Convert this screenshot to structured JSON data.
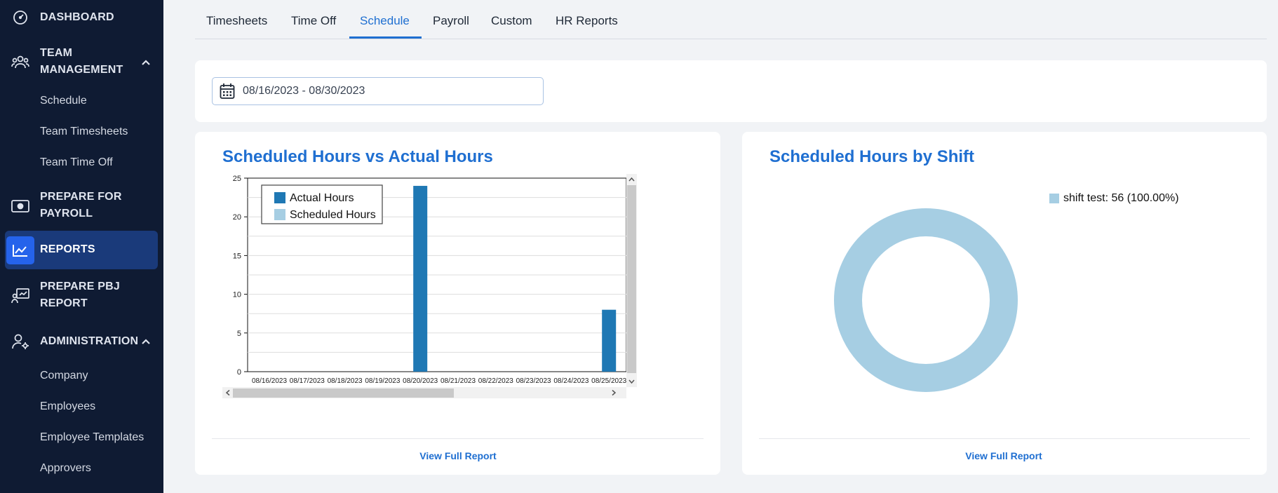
{
  "sidebar": {
    "dashboard": "DASHBOARD",
    "team_management_line1": "TEAM",
    "team_management_line2": "MANAGEMENT",
    "team_items": [
      "Schedule",
      "Team Timesheets",
      "Team Time Off"
    ],
    "prepare_payroll_line1": "PREPARE FOR",
    "prepare_payroll_line2": "PAYROLL",
    "reports": "REPORTS",
    "prepare_pbj_line1": "PREPARE PBJ",
    "prepare_pbj_line2": "REPORT",
    "administration": "ADMINISTRATION",
    "admin_items": [
      "Company",
      "Employees",
      "Employee Templates",
      "Approvers"
    ]
  },
  "tabs": [
    "Timesheets",
    "Time Off",
    "Schedule",
    "Payroll",
    "Custom",
    "HR Reports"
  ],
  "active_tab": "Schedule",
  "date_range": "08/16/2023 - 08/30/2023",
  "bar_card": {
    "title": "Scheduled Hours vs Actual Hours",
    "link": "View Full Report"
  },
  "pie_card": {
    "title": "Scheduled Hours by Shift",
    "legend": "shift test: 56 (100.00%)",
    "link": "View Full Report"
  },
  "colors": {
    "accent": "#1f6fd1",
    "sidebar_bg": "#0f1b33",
    "actual": "#1f78b4",
    "scheduled": "#a6cee3"
  },
  "chart_data": [
    {
      "type": "bar",
      "title": "Scheduled Hours vs Actual Hours",
      "categories": [
        "08/16/2023",
        "08/17/2023",
        "08/18/2023",
        "08/19/2023",
        "08/20/2023",
        "08/21/2023",
        "08/22/2023",
        "08/23/2023",
        "08/24/2023",
        "08/25/2023"
      ],
      "series": [
        {
          "name": "Actual Hours",
          "values": [
            0,
            0,
            0,
            0,
            24,
            0,
            0,
            0,
            0,
            8
          ]
        },
        {
          "name": "Scheduled Hours",
          "values": [
            0,
            0,
            0,
            0,
            0,
            0,
            0,
            0,
            0,
            0
          ]
        }
      ],
      "yticks": [
        0,
        5,
        10,
        15,
        20,
        25
      ],
      "ylim": [
        0,
        25
      ],
      "grid": true,
      "legend": "top-left"
    },
    {
      "type": "pie",
      "title": "Scheduled Hours by Shift",
      "slices": [
        {
          "label": "shift test",
          "value": 56,
          "percent": 100.0
        }
      ],
      "legend": "top-right"
    }
  ]
}
